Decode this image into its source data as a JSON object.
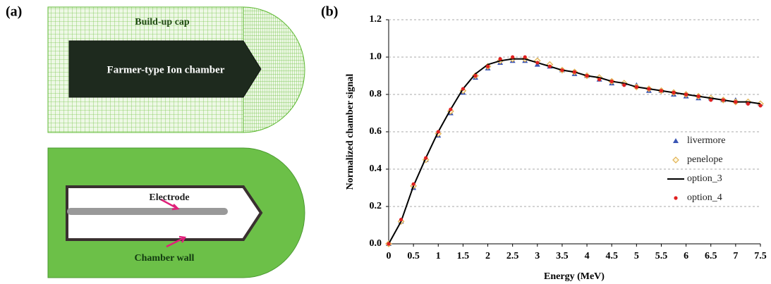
{
  "panel_labels": [
    "(a)",
    "(b)"
  ],
  "diagram": {
    "cap_label": "Build-up cap",
    "chamber_label": "Farmer-type Ion chamber",
    "electrode_label": "Electrode",
    "wall_label": "Chamber wall"
  },
  "chart_data": {
    "type": "scatter",
    "xlabel": "Energy (MeV)",
    "ylabel": "Normalized chamber signal",
    "xlim": [
      0,
      7.5
    ],
    "xticks": [
      0,
      0.5,
      1,
      1.5,
      2,
      2.5,
      3,
      3.5,
      4,
      4.5,
      5,
      5.5,
      6,
      6.5,
      7,
      7.5
    ],
    "ylim": [
      0,
      1.2
    ],
    "yticks": [
      {
        "value": 0,
        "label": "0.0"
      },
      0.2,
      0.4,
      0.6,
      0.8,
      {
        "value": 1,
        "label": "1.0"
      },
      1.2
    ],
    "grid": true,
    "legend": "right",
    "x": [
      0,
      0.25,
      0.5,
      0.75,
      1,
      1.25,
      1.5,
      1.75,
      2,
      2.25,
      2.5,
      2.75,
      3,
      3.25,
      3.5,
      3.75,
      4,
      4.25,
      4.5,
      4.75,
      5,
      5.25,
      5.5,
      5.75,
      6,
      6.25,
      6.5,
      6.75,
      7,
      7.25,
      7.5
    ],
    "series": [
      {
        "name": "livermore",
        "color": "#3a55b4",
        "marker": "triangle",
        "values": [
          0,
          0.12,
          0.3,
          0.45,
          0.58,
          0.7,
          0.81,
          0.89,
          0.94,
          0.97,
          0.98,
          0.98,
          0.96,
          0.95,
          0.93,
          0.91,
          0.9,
          0.88,
          0.86,
          0.86,
          0.85,
          0.82,
          0.82,
          0.8,
          0.79,
          0.78,
          0.78,
          0.77,
          0.77,
          0.76,
          0.75
        ]
      },
      {
        "name": "penelope",
        "color": "#e0b050",
        "marker": "diamond",
        "values": [
          0,
          0.12,
          0.31,
          0.45,
          0.59,
          0.71,
          0.82,
          0.9,
          0.95,
          0.98,
          0.99,
          0.99,
          0.98,
          0.96,
          0.93,
          0.92,
          0.9,
          0.89,
          0.87,
          0.86,
          0.84,
          0.83,
          0.82,
          0.81,
          0.8,
          0.79,
          0.78,
          0.77,
          0.76,
          0.76,
          0.75
        ]
      },
      {
        "name": "option_3",
        "color": "#000000",
        "marker": "line",
        "values": [
          0,
          0.12,
          0.31,
          0.46,
          0.6,
          0.72,
          0.83,
          0.91,
          0.96,
          0.98,
          0.99,
          0.99,
          0.97,
          0.95,
          0.93,
          0.92,
          0.9,
          0.89,
          0.87,
          0.86,
          0.84,
          0.83,
          0.82,
          0.81,
          0.8,
          0.79,
          0.78,
          0.77,
          0.76,
          0.76,
          0.75
        ]
      },
      {
        "name": "option_4",
        "color": "#e02020",
        "marker": "circle",
        "values": [
          0,
          0.13,
          0.32,
          0.46,
          0.6,
          0.72,
          0.83,
          0.9,
          0.95,
          0.99,
          1,
          1,
          0.97,
          0.95,
          0.93,
          0.92,
          0.9,
          0.88,
          0.87,
          0.85,
          0.84,
          0.83,
          0.82,
          0.81,
          0.8,
          0.79,
          0.77,
          0.77,
          0.76,
          0.75,
          0.74
        ]
      }
    ]
  }
}
